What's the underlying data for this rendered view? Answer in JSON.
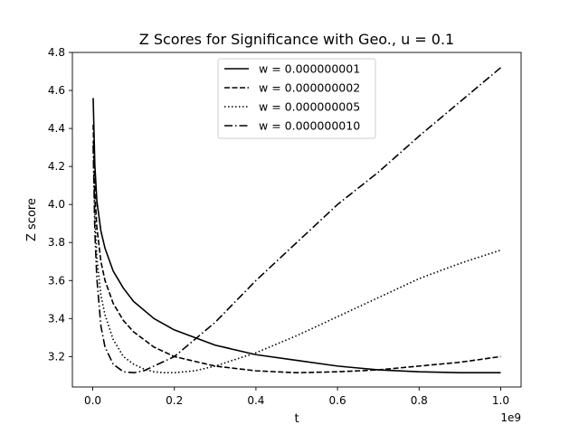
{
  "chart_data": {
    "type": "line",
    "title": "Z Scores for Significance with Geo., u = 0.1",
    "xlabel": "t",
    "ylabel": "Z score",
    "x_offset_label": "1e9",
    "x_unit_scale": 1000000000,
    "xlim": [
      -0.05,
      1.05
    ],
    "ylim": [
      3.04,
      4.8
    ],
    "xticks": [
      0.0,
      0.2,
      0.4,
      0.6,
      0.8,
      1.0
    ],
    "xtick_labels": [
      "0.0",
      "0.2",
      "0.4",
      "0.6",
      "0.8",
      "1.0"
    ],
    "yticks": [
      3.2,
      3.4,
      3.6,
      3.8,
      4.0,
      4.2,
      4.4,
      4.6,
      4.8
    ],
    "ytick_labels": [
      "3.2",
      "3.4",
      "3.6",
      "3.8",
      "4.0",
      "4.2",
      "4.4",
      "4.6",
      "4.8"
    ],
    "grid": false,
    "legend_position": "upper center",
    "series": [
      {
        "name": "w = 0.000000001",
        "line_style": "solid",
        "color": "#000000",
        "x": [
          0.001,
          0.005,
          0.01,
          0.02,
          0.03,
          0.05,
          0.075,
          0.1,
          0.15,
          0.2,
          0.3,
          0.4,
          0.5,
          0.6,
          0.7,
          0.8,
          0.9,
          1.0
        ],
        "y": [
          4.56,
          4.21,
          4.02,
          3.86,
          3.77,
          3.65,
          3.56,
          3.49,
          3.4,
          3.34,
          3.26,
          3.21,
          3.18,
          3.15,
          3.13,
          3.12,
          3.115,
          3.115
        ]
      },
      {
        "name": "w = 0.000000002",
        "line_style": "dashed",
        "color": "#000000",
        "x": [
          0.001,
          0.005,
          0.01,
          0.02,
          0.03,
          0.05,
          0.075,
          0.1,
          0.15,
          0.2,
          0.3,
          0.4,
          0.5,
          0.6,
          0.7,
          0.8,
          0.9,
          1.0
        ],
        "y": [
          4.42,
          4.07,
          3.88,
          3.7,
          3.6,
          3.48,
          3.39,
          3.33,
          3.25,
          3.2,
          3.15,
          3.125,
          3.115,
          3.12,
          3.13,
          3.15,
          3.17,
          3.2
        ]
      },
      {
        "name": "w = 0.000000005",
        "line_style": "dotted",
        "color": "#000000",
        "x": [
          0.001,
          0.005,
          0.01,
          0.02,
          0.03,
          0.05,
          0.075,
          0.1,
          0.125,
          0.15,
          0.175,
          0.2,
          0.25,
          0.3,
          0.4,
          0.5,
          0.6,
          0.7,
          0.8,
          0.9,
          1.0
        ],
        "y": [
          4.33,
          3.95,
          3.72,
          3.52,
          3.42,
          3.29,
          3.2,
          3.16,
          3.135,
          3.12,
          3.115,
          3.115,
          3.125,
          3.15,
          3.22,
          3.31,
          3.41,
          3.51,
          3.61,
          3.69,
          3.76
        ]
      },
      {
        "name": "w = 0.000000010",
        "line_style": "dashdot",
        "color": "#000000",
        "x": [
          0.001,
          0.005,
          0.01,
          0.02,
          0.03,
          0.05,
          0.075,
          0.1,
          0.125,
          0.15,
          0.2,
          0.3,
          0.4,
          0.5,
          0.6,
          0.7,
          0.8,
          0.9,
          1.0
        ],
        "y": [
          4.31,
          3.86,
          3.61,
          3.36,
          3.25,
          3.16,
          3.12,
          3.115,
          3.125,
          3.15,
          3.2,
          3.38,
          3.6,
          3.8,
          4.0,
          4.17,
          4.36,
          4.54,
          4.72
        ]
      }
    ]
  }
}
